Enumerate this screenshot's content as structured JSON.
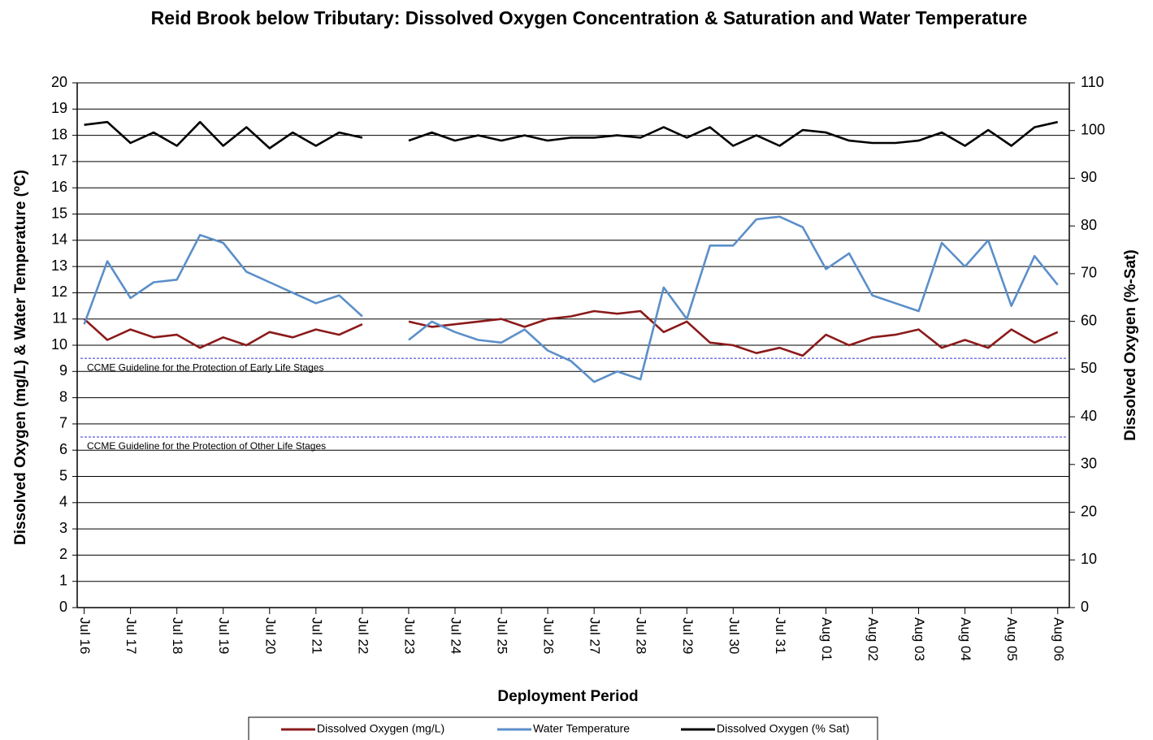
{
  "chart_data": {
    "type": "line",
    "title": "Reid Brook below Tributary: Dissolved Oxygen Concentration & Saturation and Water Temperature",
    "x_label": "Deployment Period",
    "y_label": "Dissolved  Oxygen (mg/L) & Water Temperature (ºC)",
    "y2_label": "Dissolved  Oxygen (%-Sat)",
    "x": [
      0,
      0.5,
      1,
      1.5,
      2,
      2.5,
      3,
      3.5,
      4,
      4.5,
      5,
      5.5,
      6,
      6.5,
      7,
      7.5,
      8,
      8.5,
      9,
      9.5,
      10,
      10.5,
      11,
      11.5,
      12,
      12.5,
      13,
      13.5,
      14,
      14.5,
      15,
      15.5,
      16,
      16.5,
      17,
      17.5,
      18,
      18.5,
      19,
      19.5,
      20,
      20.5,
      21
    ],
    "xlim": [
      -0.15,
      21.25
    ],
    "xticks": [
      {
        "value": 0,
        "label": "Jul 16"
      },
      {
        "value": 1,
        "label": "Jul 17"
      },
      {
        "value": 2,
        "label": "Jul 18"
      },
      {
        "value": 3,
        "label": "Jul 19"
      },
      {
        "value": 4,
        "label": "Jul 20"
      },
      {
        "value": 5,
        "label": "Jul 21"
      },
      {
        "value": 6,
        "label": "Jul 22"
      },
      {
        "value": 7,
        "label": "Jul 23"
      },
      {
        "value": 8,
        "label": "Jul 24"
      },
      {
        "value": 9,
        "label": "Jul 25"
      },
      {
        "value": 10,
        "label": "Jul 26"
      },
      {
        "value": 11,
        "label": "Jul 27"
      },
      {
        "value": 12,
        "label": "Jul 28"
      },
      {
        "value": 13,
        "label": "Jul 29"
      },
      {
        "value": 14,
        "label": "Jul 30"
      },
      {
        "value": 15,
        "label": "Jul 31"
      },
      {
        "value": 16,
        "label": "Aug 01"
      },
      {
        "value": 17,
        "label": "Aug 02"
      },
      {
        "value": 18,
        "label": "Aug 03"
      },
      {
        "value": 19,
        "label": "Aug 04"
      },
      {
        "value": 20,
        "label": "Aug 05"
      },
      {
        "value": 21,
        "label": "Aug 06"
      }
    ],
    "ylim": [
      0,
      20
    ],
    "yticks": [
      0,
      1,
      2,
      3,
      4,
      5,
      6,
      7,
      8,
      9,
      10,
      11,
      12,
      13,
      14,
      15,
      16,
      17,
      18,
      19,
      20
    ],
    "y2lim": [
      0,
      110
    ],
    "y2ticks": [
      0,
      10,
      20,
      30,
      40,
      50,
      60,
      70,
      80,
      90,
      100,
      110
    ],
    "grid": true,
    "series": [
      {
        "name": "Dissolved Oxygen (mg/L)",
        "color": "#8b1a1a",
        "values": [
          11.0,
          10.2,
          10.6,
          10.3,
          10.4,
          9.9,
          10.3,
          10.0,
          10.5,
          10.3,
          10.6,
          10.4,
          10.8,
          null,
          10.9,
          10.7,
          10.8,
          10.9,
          11.0,
          10.7,
          11.0,
          11.1,
          11.3,
          11.2,
          11.3,
          10.5,
          10.9,
          10.1,
          10.0,
          9.7,
          9.9,
          9.6,
          10.4,
          10.0,
          10.3,
          10.4,
          10.6,
          9.9,
          10.2,
          9.9,
          10.6,
          10.1,
          10.5
        ]
      },
      {
        "name": "Water Temperature",
        "color": "#5b8fc9",
        "values": [
          10.8,
          13.2,
          11.8,
          12.4,
          12.5,
          14.2,
          13.9,
          12.8,
          12.4,
          12.0,
          11.6,
          11.9,
          11.1,
          null,
          10.2,
          10.9,
          10.5,
          10.2,
          10.1,
          10.6,
          9.8,
          9.4,
          8.6,
          9.0,
          8.7,
          12.2,
          11.0,
          13.8,
          13.8,
          14.8,
          14.9,
          14.5,
          12.9,
          13.5,
          11.9,
          11.6,
          11.3,
          13.9,
          13.0,
          14.0,
          11.5,
          13.4,
          12.3
        ]
      },
      {
        "name": "Dissolved Oxygen (% Sat)",
        "color": "#000000",
        "axis": "y2",
        "values": [
          101.2,
          101.8,
          97.4,
          99.6,
          96.8,
          101.8,
          96.8,
          100.7,
          96.3,
          99.6,
          96.8,
          99.6,
          98.5,
          null,
          97.9,
          99.6,
          97.9,
          99,
          97.9,
          99,
          97.9,
          98.5,
          98.5,
          99,
          98.5,
          100.7,
          98.5,
          100.7,
          96.8,
          99,
          96.8,
          100.1,
          99.6,
          97.9,
          97.4,
          97.4,
          97.9,
          99.6,
          96.8,
          100.1,
          96.8,
          100.7,
          101.8
        ]
      }
    ],
    "guidelines": [
      {
        "label": "CCME Guideline  for the Protection of Early Life Stages",
        "value": 9.5,
        "color": "#3333cc"
      },
      {
        "label": "CCME Guideline  for the Protection of Other Life Stages",
        "value": 6.5,
        "color": "#3333cc"
      }
    ]
  }
}
